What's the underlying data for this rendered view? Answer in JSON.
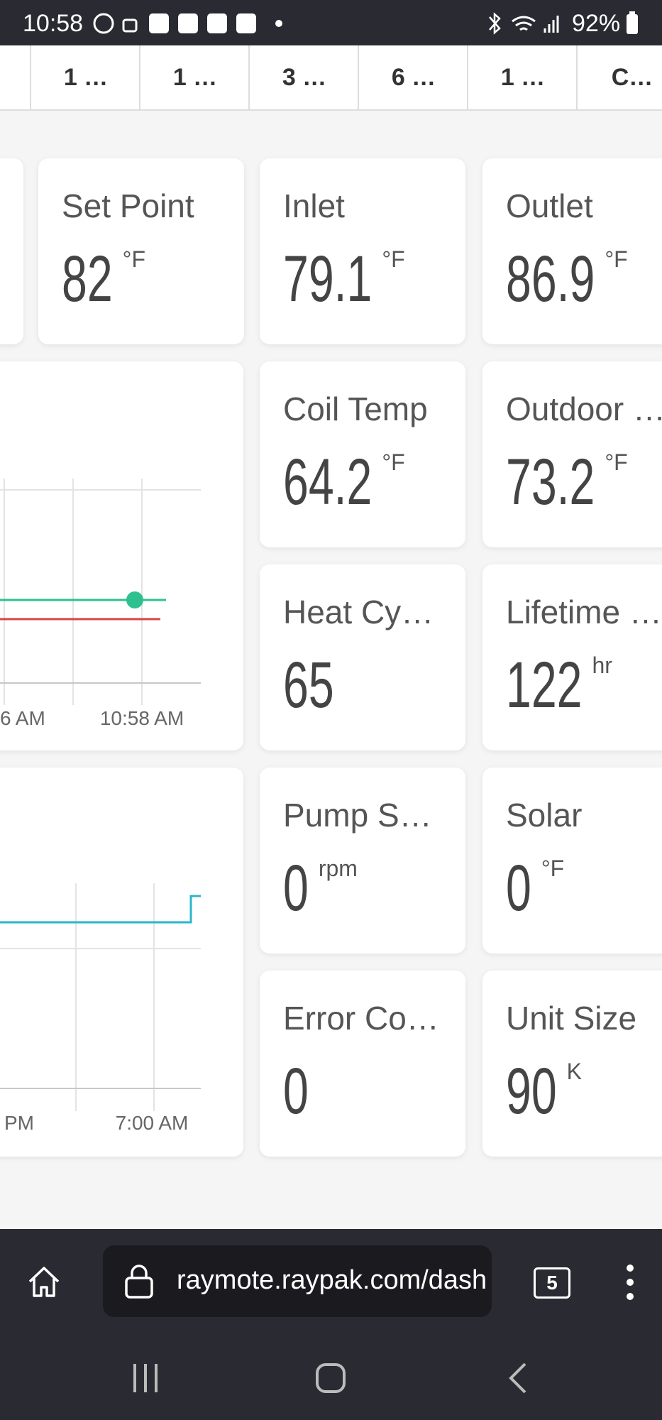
{
  "status_bar": {
    "time": "10:58",
    "battery": "92%"
  },
  "tabs": [
    "1 …",
    "1 …",
    "3 …",
    "6 …",
    "1 …",
    "C…"
  ],
  "cards": [
    {
      "label": "Set Point",
      "value": "82",
      "unit": "°F"
    },
    {
      "label": "Inlet",
      "value": "79.1",
      "unit": "°F"
    },
    {
      "label": "Outlet",
      "value": "86.9",
      "unit": "°F"
    },
    {
      "label": "Coil Temp",
      "value": "64.2",
      "unit": "°F"
    },
    {
      "label": "Outdoor …",
      "value": "73.2",
      "unit": "°F"
    },
    {
      "label": "Heat Cy…",
      "value": "65"
    },
    {
      "label": "Lifetime …",
      "value": "122",
      "unit": "hr"
    },
    {
      "label": "Pump S…",
      "value": "0",
      "unit": "rpm"
    },
    {
      "label": "Solar",
      "value": "0",
      "unit": "°F"
    },
    {
      "label": "Error Co…",
      "value": "0"
    },
    {
      "label": "Unit Size",
      "value": "90",
      "unit": "K"
    }
  ],
  "charts": [
    {
      "x_labels": [
        "6 AM",
        "10:58 AM"
      ]
    },
    {
      "x_labels": [
        "PM",
        "7:00 AM"
      ]
    }
  ],
  "browser": {
    "url": "raymote.raypak.com/dash",
    "tab_count": "5"
  }
}
